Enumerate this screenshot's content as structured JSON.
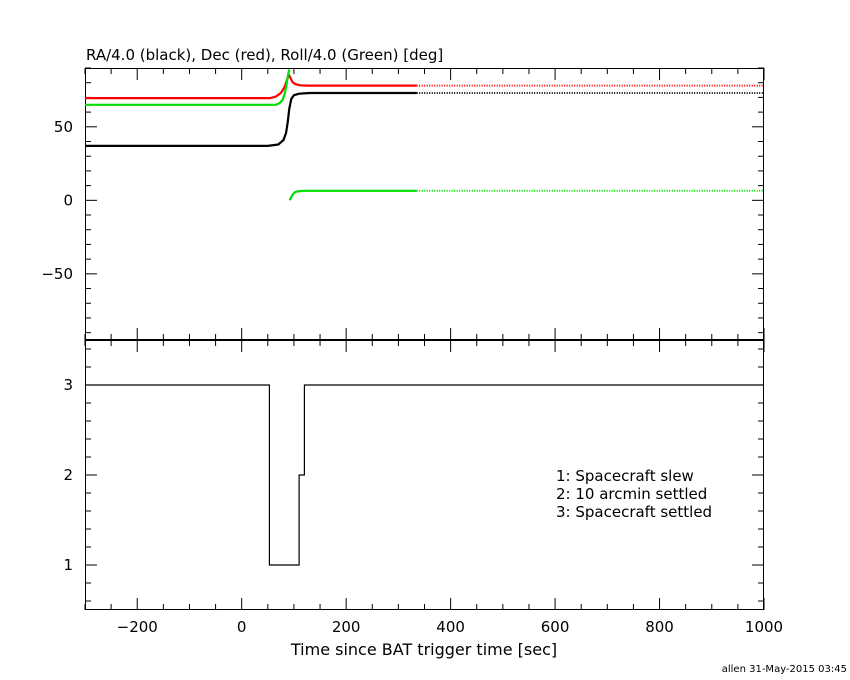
{
  "colors": {
    "background": "#ffffff",
    "axes": "#000000",
    "ra": "#000000",
    "dec": "#ff0000",
    "roll": "#00dd00",
    "status": "#000000"
  },
  "chart_data": [
    {
      "type": "line",
      "title": "RA/4.0 (black), Dec (red), Roll/4.0 (Green) [deg]",
      "xlim": [
        -300,
        1000
      ],
      "ylim": [
        -95,
        90
      ],
      "x_ticks": [
        -200,
        0,
        200,
        400,
        600,
        800,
        1000
      ],
      "y_ticks": [
        -50,
        0,
        50
      ],
      "y_tick_labels": [
        "−50",
        "0",
        "50"
      ],
      "series": [
        {
          "key": "ra",
          "color": "#000000",
          "x": [
            -300,
            50,
            70,
            80,
            85,
            88,
            91,
            95,
            100,
            110,
            130,
            335
          ],
          "y": [
            37,
            37,
            38,
            41,
            46,
            53,
            62,
            69,
            71.5,
            72.5,
            73,
            73
          ],
          "x_dotted": [
            335,
            1000
          ],
          "y_dotted": [
            73,
            73
          ]
        },
        {
          "key": "dec",
          "color": "#ff0000",
          "x": [
            -300,
            55,
            65,
            75,
            82,
            87,
            90,
            93,
            97,
            103,
            112,
            125,
            150,
            335
          ],
          "y": [
            69.5,
            69.5,
            70.5,
            73,
            77,
            82,
            85.5,
            83.5,
            80.5,
            79,
            78.2,
            78,
            78,
            78
          ],
          "x_dotted": [
            335,
            1000
          ],
          "y_dotted": [
            78,
            78
          ]
        },
        {
          "key": "roll",
          "color": "#00dd00",
          "segments": [
            {
              "x": [
                -300,
                65,
                72,
                78,
                82,
                85,
                88,
                91
              ],
              "y": [
                65,
                65,
                66,
                68,
                72,
                77,
                84,
                89
              ]
            },
            {
              "x": [
                92,
                94,
                96,
                99,
                102,
                106,
                112,
                120,
                335
              ],
              "y": [
                0,
                1.5,
                3,
                4.5,
                5.5,
                6,
                6.3,
                6.5,
                6.5
              ]
            }
          ],
          "x_dotted": [
            335,
            1000
          ],
          "y_dotted": [
            6.5,
            6.5
          ]
        }
      ]
    },
    {
      "type": "line",
      "xlabel": "Time since BAT trigger time [sec]",
      "xlim": [
        -300,
        1000
      ],
      "ylim": [
        0.5,
        3.5
      ],
      "x_ticks": [
        -200,
        0,
        200,
        400,
        600,
        800,
        1000
      ],
      "x_tick_labels": [
        "−200",
        "0",
        "200",
        "400",
        "600",
        "800",
        "1000"
      ],
      "y_ticks": [
        1,
        2,
        3
      ],
      "series": [
        {
          "key": "status",
          "color": "#000000",
          "step": true,
          "x": [
            -300,
            53,
            53,
            110,
            110,
            120,
            120,
            1000
          ],
          "y": [
            3,
            3,
            1,
            1,
            2,
            2,
            3,
            3
          ]
        }
      ],
      "legend": [
        "1: Spacecraft slew",
        "2: 10 arcmin settled",
        "3: Spacecraft settled"
      ]
    }
  ],
  "footer": "allen 31-May-2015 03:45"
}
